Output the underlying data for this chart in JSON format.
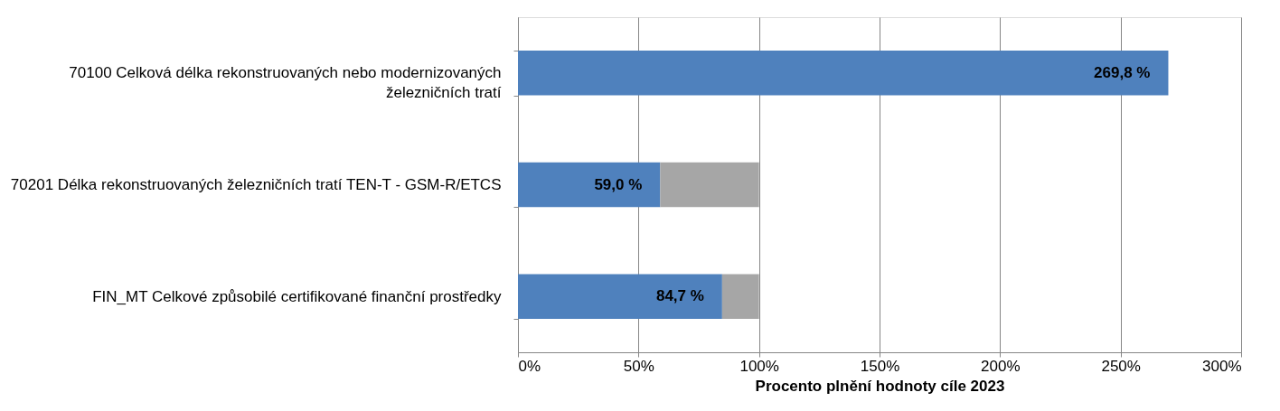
{
  "chart_data": {
    "type": "bar",
    "orientation": "horizontal",
    "stacked": true,
    "categories": [
      "70100 Celková délka rekonstruovaných nebo modernizovaných\nželezničních tratí",
      "70201 Délka rekonstruovaných železničních tratí TEN-T - GSM-R/ETCS",
      "FIN_MT Celkové způsobilé certifikované finanční prostředky"
    ],
    "series": [
      {
        "color": "#4f81bd",
        "values": [
          269.8,
          59.0,
          84.7
        ],
        "value_labels": [
          "269,8 %",
          "59,0 %",
          "84,7 %"
        ]
      },
      {
        "color": "#a6a6a6",
        "values": [
          null,
          41.0,
          15.3
        ]
      }
    ],
    "xlabel": "Procento plnění hodnoty cíle 2023",
    "xlim": [
      0,
      300
    ],
    "xticks": [
      {
        "value": 0,
        "label": "0%"
      },
      {
        "value": 50,
        "label": "50%"
      },
      {
        "value": 100,
        "label": "100%"
      },
      {
        "value": 150,
        "label": "150%"
      },
      {
        "value": 200,
        "label": "200%"
      },
      {
        "value": 250,
        "label": "250%"
      },
      {
        "value": 300,
        "label": "300%"
      }
    ],
    "grid": "x",
    "legend": false
  }
}
